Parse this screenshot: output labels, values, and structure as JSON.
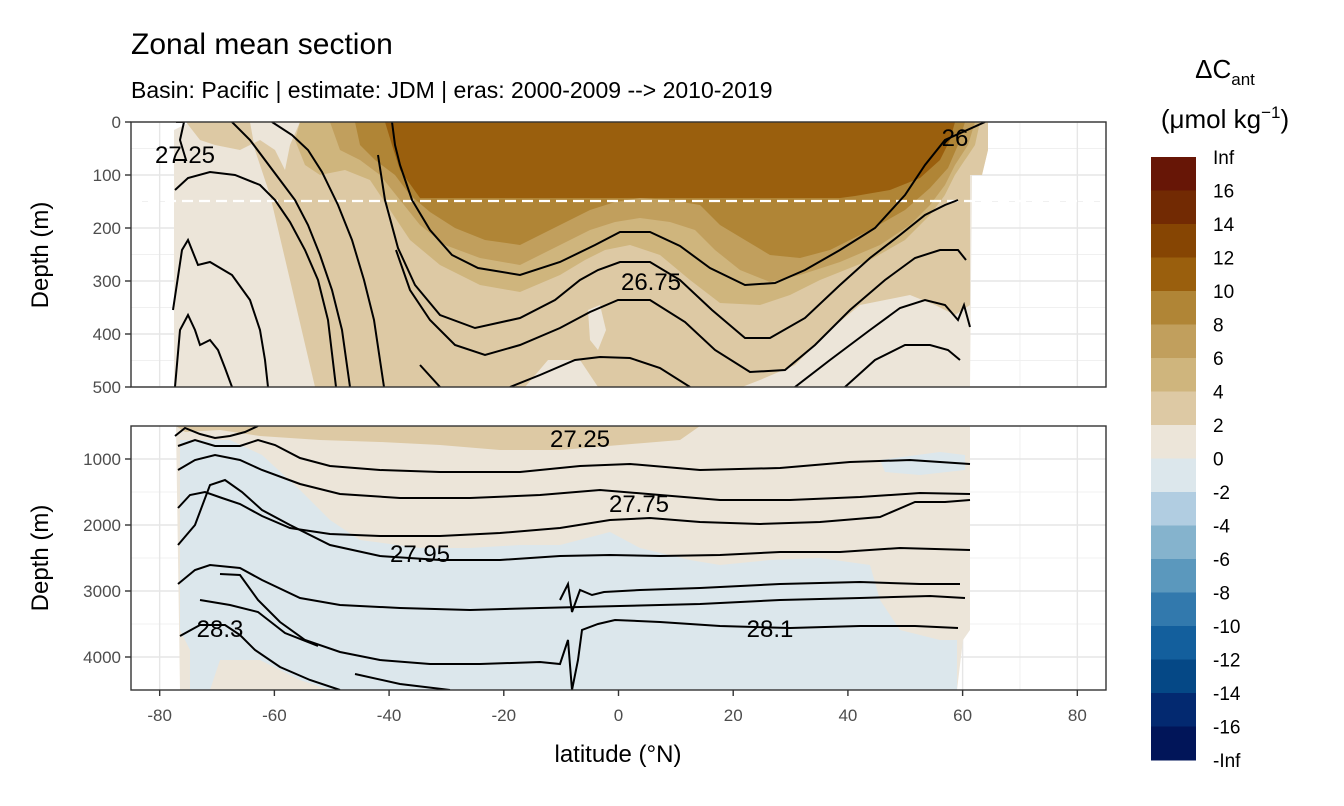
{
  "chart_data": {
    "type": "heatmap",
    "title": "Zonal mean section",
    "subtitle": "Basin: Pacific | estimate: JDM  | eras: 2000-2009 --> 2010-2019",
    "xlabel": "latitude (°N)",
    "xlim": [
      -85,
      85
    ],
    "xticks": [
      "-80",
      "-60",
      "-40",
      "-20",
      "0",
      "20",
      "40",
      "60",
      "80"
    ],
    "panels": [
      {
        "name": "upper",
        "ylabel": "Depth (m)",
        "ylim": [
          0,
          500
        ],
        "y_reversed": true,
        "yticks": [
          "0",
          "100",
          "200",
          "300",
          "400",
          "500"
        ],
        "dashed_reference_depth": 150,
        "isopycnal_labels": [
          {
            "text": "27.25",
            "lat": -72,
            "depth": 60
          },
          {
            "text": "26.75",
            "lat": 6,
            "depth": 300
          },
          {
            "text": "26",
            "lat": 59,
            "depth": 30
          }
        ]
      },
      {
        "name": "lower",
        "ylabel": "Depth (m)",
        "ylim": [
          500,
          4500
        ],
        "y_reversed": true,
        "yticks": [
          "1000",
          "2000",
          "3000",
          "4000"
        ],
        "isopycnal_labels": [
          {
            "text": "27.25",
            "lat": -9,
            "depth": 700
          },
          {
            "text": "27.75",
            "lat": 3,
            "depth": 1680
          },
          {
            "text": "27.95",
            "lat": -35,
            "depth": 2430
          },
          {
            "text": "28.3",
            "lat": -70,
            "depth": 3580
          },
          {
            "text": "28.1",
            "lat": 27,
            "depth": 3560
          }
        ]
      }
    ],
    "legend": {
      "title_main": "ΔC",
      "title_sub": "ant",
      "unit_main": "(μmol kg",
      "unit_sup": "−1",
      "unit_end": ")",
      "placement": "right",
      "labels": [
        "Inf",
        "16",
        "14",
        "12",
        "10",
        "8",
        "6",
        "4",
        "2",
        "0",
        "-2",
        "-4",
        "-6",
        "-8",
        "-10",
        "-12",
        "-14",
        "-16",
        "-Inf"
      ],
      "colors": [
        "#671606",
        "#722a03",
        "#864503",
        "#9a5f0d",
        "#b08536",
        "#c19f5d",
        "#cfb57d",
        "#ddc9a4",
        "#ece5d9",
        "#dce7ec",
        "#b1cde1",
        "#85b3cd",
        "#5b98bd",
        "#3279ad",
        "#135f9d",
        "#054886",
        "#032970",
        "#011559"
      ]
    }
  }
}
